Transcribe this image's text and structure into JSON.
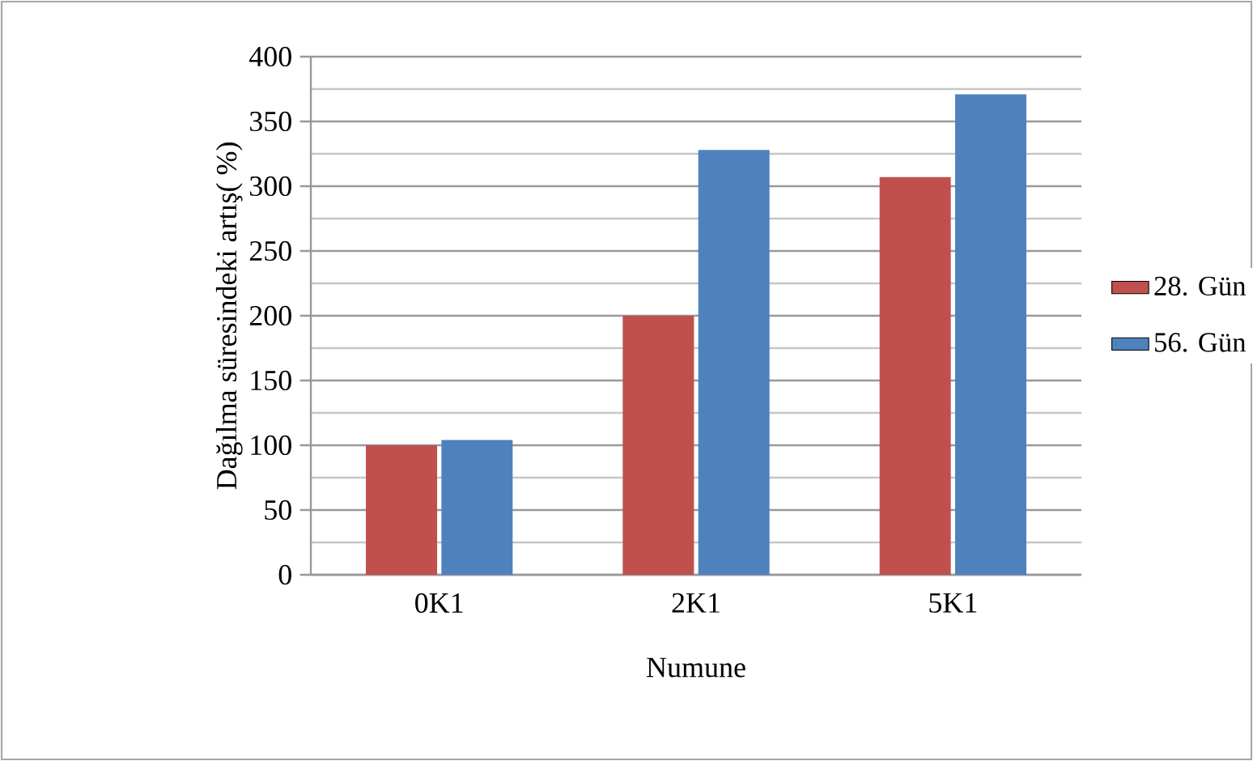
{
  "chart_data": {
    "type": "bar",
    "xlabel": "Numune",
    "ylabel": "Dağılma süresindeki artış( %)",
    "categories": [
      "0K1",
      "2K1",
      "5K1"
    ],
    "series": [
      {
        "name": "28. Gün",
        "color": "#c0504d",
        "values": [
          100,
          200,
          307
        ]
      },
      {
        "name": "56. Gün",
        "color": "#4f81bd",
        "values": [
          104,
          328,
          371
        ]
      }
    ],
    "ylim": [
      0,
      400
    ],
    "yticks": [
      0,
      {
        "value": 25,
        "label": null
      },
      50,
      {
        "value": 75,
        "label": null
      },
      100,
      {
        "value": 125,
        "label": null
      },
      150,
      {
        "value": 175,
        "label": null
      },
      200,
      {
        "value": 225,
        "label": null
      },
      250,
      {
        "value": 275,
        "label": null
      },
      300,
      {
        "value": 325,
        "label": null
      },
      350,
      {
        "value": 375,
        "label": null
      },
      400
    ],
    "grid": true,
    "legend": "right"
  }
}
